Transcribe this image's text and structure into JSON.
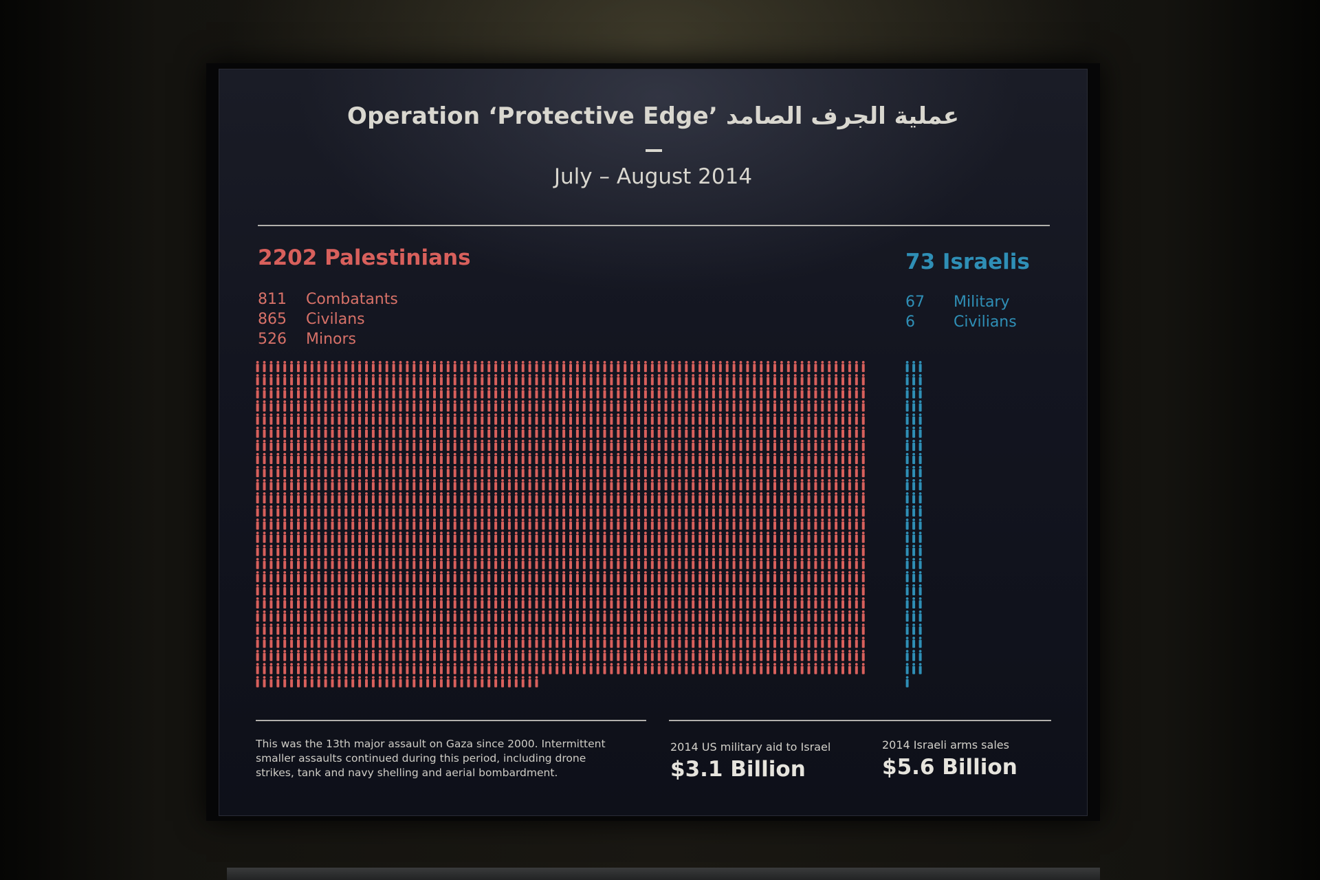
{
  "title": "Operation ‘Protective Edge’ عملية الجرف الصامد",
  "subtitle": "July – August 2014",
  "palestinians": {
    "heading": "2202 Palestinians",
    "total": 2202,
    "color": "#d8605c",
    "breakdown": [
      {
        "count": "811",
        "label": "Combatants"
      },
      {
        "count": "865",
        "label": "Civilans"
      },
      {
        "count": "526",
        "label": "Minors"
      }
    ]
  },
  "israelis": {
    "heading": "73 Israelis",
    "total": 73,
    "color": "#2f8fb6",
    "breakdown": [
      {
        "count": "67",
        "label": "Military"
      },
      {
        "count": "6",
        "label": "Civilians"
      }
    ]
  },
  "footnote": "This was the 13th major assault on Gaza since 2000. Intermittent smaller assaults continued during this period, including drone strikes, tank and navy shelling and aerial bombardment.",
  "stats": [
    {
      "label": "2014 US military aid to Israel",
      "value": "$3.1 Billion"
    },
    {
      "label": "2014 Israeli arms sales",
      "value": "$5.6 Billion"
    }
  ]
}
